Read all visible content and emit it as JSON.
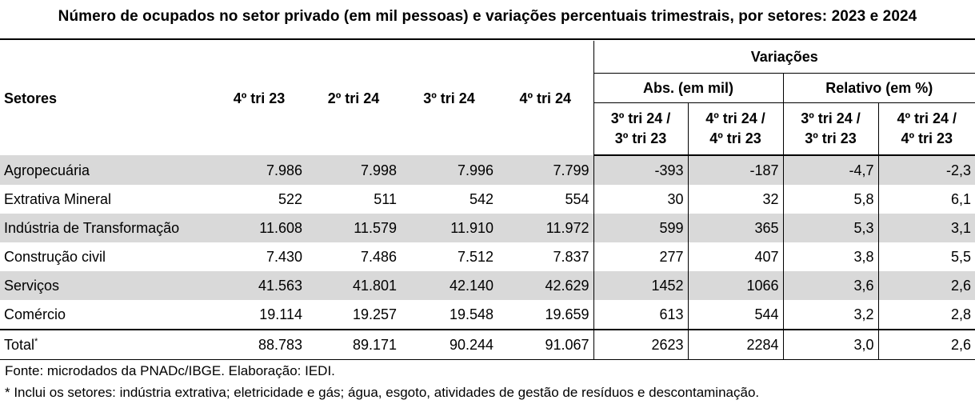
{
  "title": "Número de ocupados no setor privado (em mil pessoas) e variações percentuais trimestrais, por setores:  2023 e 2024",
  "header": {
    "setores": "Setores",
    "periods": [
      "4º tri 23",
      "2º tri 24",
      "3º tri 24",
      "4º tri 24"
    ],
    "variacoes": "Variações",
    "abs": "Abs. (em mil)",
    "relativo": "Relativo (em %)",
    "comparisons": [
      {
        "line1": "3º tri 24 /",
        "line2": "3º tri 23"
      },
      {
        "line1": "4º tri 24 /",
        "line2": "4º tri 23"
      },
      {
        "line1": "3º tri 24 /",
        "line2": "3º tri 23"
      },
      {
        "line1": "4º tri 24 /",
        "line2": "4º tri 23"
      }
    ]
  },
  "rows": [
    {
      "name": "Agropecuária",
      "cells": [
        "7.986",
        "7.998",
        "7.996",
        "7.799",
        "-393",
        "-187",
        "-4,7",
        "-2,3"
      ]
    },
    {
      "name": "Extrativa Mineral",
      "cells": [
        "522",
        "511",
        "542",
        "554",
        "30",
        "32",
        "5,8",
        "6,1"
      ]
    },
    {
      "name": "Indústria de Transformação",
      "cells": [
        "11.608",
        "11.579",
        "11.910",
        "11.972",
        "599",
        "365",
        "5,3",
        "3,1"
      ]
    },
    {
      "name": "Construção civil",
      "cells": [
        "7.430",
        "7.486",
        "7.512",
        "7.837",
        "277",
        "407",
        "3,8",
        "5,5"
      ]
    },
    {
      "name": "Serviços",
      "cells": [
        "41.563",
        "41.801",
        "42.140",
        "42.629",
        "1452",
        "1066",
        "3,6",
        "2,6"
      ]
    },
    {
      "name": "Comércio",
      "cells": [
        "19.114",
        "19.257",
        "19.548",
        "19.659",
        "613",
        "544",
        "3,2",
        "2,8"
      ]
    }
  ],
  "total": {
    "name": "Total",
    "marker": "*",
    "cells": [
      "88.783",
      "89.171",
      "90.244",
      "91.067",
      "2623",
      "2284",
      "3,0",
      "2,6"
    ]
  },
  "footnotes": {
    "source": "Fonte: microdados da PNADc/IBGE. Elaboração: IEDI.",
    "note": "* Inclui os setores: indústria extrativa; eletricidade e gás; água, esgoto, atividades de gestão de resíduos e descontaminação."
  }
}
